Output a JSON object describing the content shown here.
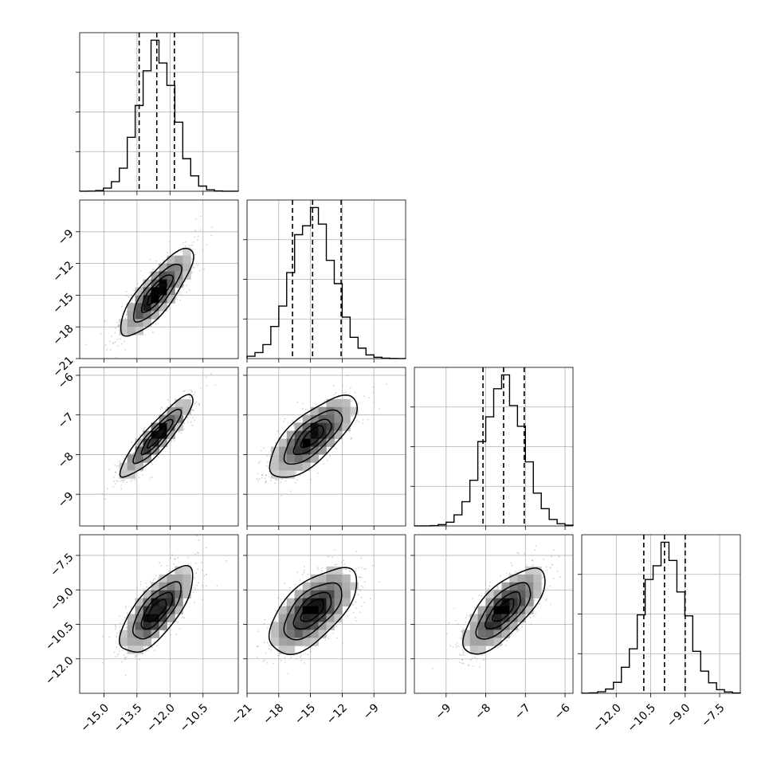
{
  "chart_data": {
    "type": "corner",
    "grid": true,
    "variables": [
      {
        "range": [
          -16.1,
          -8.9
        ],
        "ticks": [
          -15.0,
          -13.5,
          -12.0,
          -10.5
        ],
        "tick_labels": [
          "−15.0",
          "−13.5",
          "−12.0",
          "−10.5"
        ],
        "mean": -12.6,
        "sd": 0.8,
        "quantiles": [
          -13.4,
          -12.6,
          -11.8
        ]
      },
      {
        "range": [
          -21.0,
          -6.0
        ],
        "ticks": [
          -21,
          -18,
          -15,
          -12,
          -9
        ],
        "tick_labels": [
          "−21",
          "−18",
          "−15",
          "−12",
          "−9"
        ],
        "mean": -14.8,
        "sd": 2.0,
        "quantiles": [
          -16.7,
          -14.8,
          -12.1
        ]
      },
      {
        "range": [
          -9.8,
          -5.8
        ],
        "ticks": [
          -9,
          -8,
          -7,
          -6
        ],
        "tick_labels": [
          "−9",
          "−8",
          "−7",
          "−6"
        ],
        "mean": -7.55,
        "sd": 0.5,
        "quantiles": [
          -8.07,
          -7.55,
          -7.03
        ]
      },
      {
        "range": [
          -13.5,
          -6.6
        ],
        "ticks": [
          -12.0,
          -10.5,
          -9.0,
          -7.5
        ],
        "tick_labels": [
          "−12.0",
          "−10.5",
          "−9.0",
          "−7.5"
        ],
        "mean": -9.9,
        "sd": 0.9,
        "quantiles": [
          -10.8,
          -9.9,
          -9.0
        ]
      }
    ],
    "correlations": [
      [
        1.0,
        0.82,
        0.9,
        0.72
      ],
      [
        0.82,
        1.0,
        0.72,
        0.62
      ],
      [
        0.9,
        0.72,
        1.0,
        0.72
      ],
      [
        0.72,
        0.62,
        0.72,
        1.0
      ]
    ],
    "contour_levels_sigma": [
      0.5,
      1.0,
      1.5,
      2.0
    ]
  }
}
